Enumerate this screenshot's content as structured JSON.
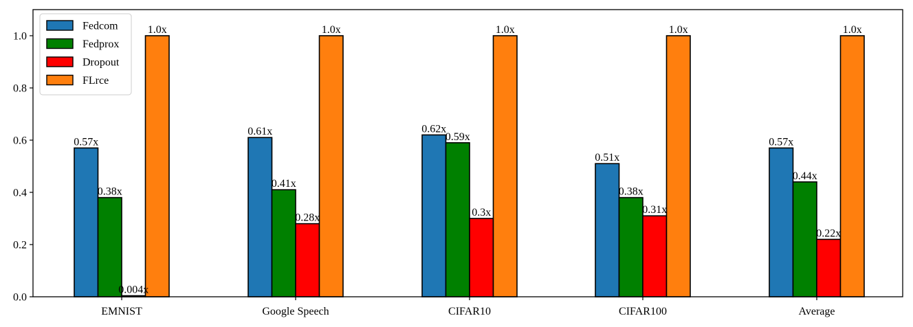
{
  "chart_data": {
    "type": "bar",
    "title": "",
    "xlabel": "",
    "ylabel": "",
    "ylim": [
      0,
      1.1
    ],
    "yticks": [
      0.0,
      0.2,
      0.4,
      0.6,
      0.8,
      1.0
    ],
    "ytick_labels": [
      "0.0",
      "0.2",
      "0.4",
      "0.6",
      "0.8",
      "1.0"
    ],
    "categories": [
      "EMNIST",
      "Google Speech",
      "CIFAR10",
      "CIFAR100",
      "Average"
    ],
    "grid": false,
    "legend_position": "top-left",
    "series": [
      {
        "name": "Fedcom",
        "color": "#1f77b4",
        "values": [
          0.57,
          0.61,
          0.62,
          0.51,
          0.57
        ],
        "labels": [
          "0.57x",
          "0.61x",
          "0.62x",
          "0.51x",
          "0.57x"
        ]
      },
      {
        "name": "Fedprox",
        "color": "#008000",
        "values": [
          0.38,
          0.41,
          0.59,
          0.38,
          0.44
        ],
        "labels": [
          "0.38x",
          "0.41x",
          "0.59x",
          "0.38x",
          "0.44x"
        ]
      },
      {
        "name": "Dropout",
        "color": "#ff0000",
        "values": [
          0.004,
          0.28,
          0.3,
          0.31,
          0.22
        ],
        "labels": [
          "0.004x",
          "0.28x",
          "0.3x",
          "0.31x",
          "0.22x"
        ]
      },
      {
        "name": "FLrce",
        "color": "#ff7f0e",
        "values": [
          1.0,
          1.0,
          1.0,
          1.0,
          1.0
        ],
        "labels": [
          "1.0x",
          "1.0x",
          "1.0x",
          "1.0x",
          "1.0x"
        ]
      }
    ]
  }
}
